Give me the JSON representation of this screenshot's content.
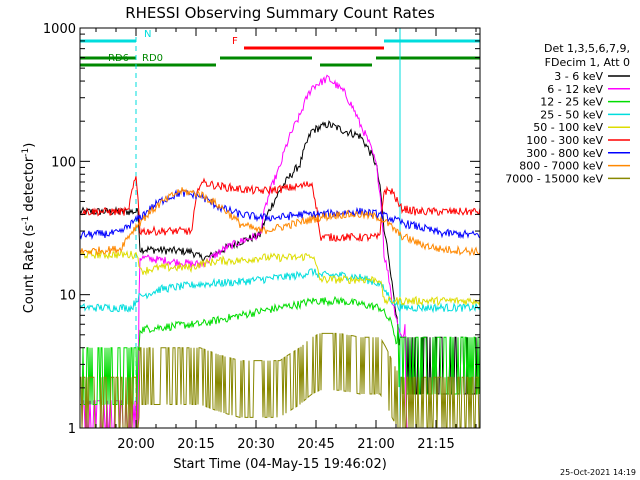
{
  "chart_data": {
    "type": "line",
    "title": "RHESSI Observing Summary Count Rates",
    "xlabel": "Start Time (04-May-15 19:46:02)",
    "ylabel_main": "Count Rate (s",
    "ylabel_sup1": "-1",
    "ylabel_mid": " detector",
    "ylabel_sup2": "-1",
    "ylabel_end": ")",
    "y_scale": "log",
    "ylim": [
      1,
      1000
    ],
    "xlim_minutes": [
      0,
      100
    ],
    "x_ticks": [
      {
        "label": "20:00",
        "minute": 14
      },
      {
        "label": "20:15",
        "minute": 29
      },
      {
        "label": "20:30",
        "minute": 44
      },
      {
        "label": "20:45",
        "minute": 59
      },
      {
        "label": "21:00",
        "minute": 74
      },
      {
        "label": "21:15",
        "minute": 89
      }
    ],
    "y_ticks": [
      {
        "label": "1",
        "value": 1
      },
      {
        "label": "10",
        "value": 10
      },
      {
        "label": "100",
        "value": 100
      },
      {
        "label": "1000",
        "value": 1000
      }
    ],
    "legend_header": [
      "Det 1,3,5,6,7,9,",
      "FDecim 1, Att 0"
    ],
    "legend_placement": "right",
    "series": [
      {
        "name": "3 - 6 keV",
        "color": "#000000",
        "x": [
          0,
          14.5,
          15,
          28,
          30,
          32,
          36,
          40,
          45,
          50,
          55,
          58,
          62,
          66,
          70,
          74,
          76,
          78,
          80,
          84,
          90,
          100
        ],
        "y": [
          42,
          42,
          22,
          21,
          19,
          19,
          22,
          25,
          28,
          60,
          95,
          170,
          190,
          170,
          155,
          95,
          30,
          12,
          3,
          3,
          3,
          3
        ]
      },
      {
        "name": "6 - 12 keV",
        "color": "#ff00ff",
        "x": [
          0,
          13,
          14.5,
          15,
          28,
          30,
          32,
          36,
          40,
          45,
          50,
          55,
          58,
          62,
          66,
          70,
          74,
          76,
          78,
          80,
          81,
          82,
          84,
          90,
          100
        ],
        "y": [
          1,
          1,
          1,
          19,
          17,
          17,
          18,
          22,
          25,
          28,
          90,
          220,
          360,
          420,
          330,
          190,
          95,
          20,
          9,
          5,
          5,
          0,
          0,
          0,
          0
        ]
      },
      {
        "name": "12 - 25 keV",
        "color": "#00dd00",
        "x": [
          0,
          14.5,
          15,
          28,
          30,
          35,
          40,
          45,
          50,
          55,
          58,
          60,
          65,
          70,
          75,
          78,
          80,
          84,
          90,
          100
        ],
        "y": [
          2.5,
          2.5,
          5.5,
          6,
          6,
          6.5,
          7,
          7.5,
          8,
          8.5,
          9,
          9,
          9,
          8.5,
          8,
          6,
          3,
          3,
          3,
          3
        ]
      },
      {
        "name": "25 - 50 keV",
        "color": "#00dddd",
        "x": [
          0,
          13,
          14.5,
          20,
          30,
          40,
          45,
          50,
          55,
          58,
          60,
          65,
          70,
          75,
          78,
          80,
          84,
          90,
          100
        ],
        "y": [
          8,
          8,
          9.5,
          11,
          12,
          12.5,
          13,
          13.5,
          14,
          15,
          14,
          14,
          13.5,
          12,
          9,
          8,
          8,
          8,
          8
        ]
      },
      {
        "name": "50 - 100 keV",
        "color": "#dddd00",
        "x": [
          0,
          14.5,
          15,
          20,
          28,
          30,
          35,
          40,
          45,
          50,
          55,
          58,
          60,
          65,
          70,
          75,
          76,
          78,
          80,
          84,
          90,
          100
        ],
        "y": [
          20,
          20,
          15,
          16,
          16,
          17,
          18,
          18,
          19,
          19,
          19,
          20,
          13,
          13,
          13,
          13,
          9,
          9,
          9,
          9,
          9,
          9
        ]
      },
      {
        "name": "100 - 300 keV",
        "color": "#ff0000",
        "x": [
          0,
          12,
          14,
          15,
          28,
          30,
          35,
          40,
          45,
          50,
          55,
          58,
          60,
          65,
          70,
          74,
          75,
          76,
          78,
          80,
          84,
          90,
          100
        ],
        "y": [
          42,
          42,
          75,
          30,
          30,
          70,
          65,
          62,
          60,
          62,
          65,
          68,
          27,
          27,
          27,
          27,
          27,
          60,
          60,
          45,
          42,
          42,
          42
        ]
      },
      {
        "name": "300 - 800 keV",
        "color": "#0000ff",
        "x": [
          0,
          10,
          15,
          20,
          25,
          30,
          35,
          40,
          45,
          50,
          55,
          60,
          65,
          70,
          75,
          80,
          85,
          90,
          100
        ],
        "y": [
          28,
          29,
          38,
          50,
          58,
          55,
          45,
          40,
          38,
          38,
          40,
          40,
          41,
          42,
          40,
          35,
          32,
          29,
          28
        ]
      },
      {
        "name": "800 - 7000 keV",
        "color": "#ff8800",
        "x": [
          0,
          10,
          15,
          20,
          25,
          30,
          35,
          40,
          45,
          50,
          55,
          60,
          65,
          70,
          75,
          80,
          85,
          90,
          100
        ],
        "y": [
          21,
          22,
          35,
          48,
          60,
          57,
          46,
          34,
          30,
          32,
          35,
          38,
          40,
          40,
          38,
          28,
          24,
          22,
          21
        ]
      },
      {
        "name": "7000 - 15000 keV",
        "color": "#888800",
        "x": [
          0,
          14.5,
          15,
          30,
          35,
          40,
          45,
          50,
          55,
          58,
          60,
          65,
          70,
          75,
          78,
          80,
          84,
          90,
          100
        ],
        "y": [
          1.5,
          1.5,
          2.5,
          2.5,
          2.2,
          2,
          2,
          2,
          2.5,
          3,
          3.2,
          3.2,
          3,
          3,
          2,
          1.5,
          1.5,
          1.5,
          1.5
        ]
      }
    ],
    "state_bars": [
      {
        "label": "N",
        "color": "#00dddd",
        "start": 0,
        "end": 14,
        "level": "top",
        "label_at": 16
      },
      {
        "label": "N",
        "color": "#00dddd",
        "start": 76,
        "end": 100,
        "level": "top",
        "label_at": null
      },
      {
        "label": "F",
        "color": "#ff0000",
        "start": 41,
        "end": 76,
        "level": "mid",
        "label_at": 38
      },
      {
        "label": "RD0",
        "color": "#008800",
        "start": 0,
        "end": 14,
        "level": "low",
        "label_at": null
      },
      {
        "label": "RD0",
        "color": "#008800",
        "start": 14,
        "end": 34,
        "level": "bottom",
        "label_at": 15.5
      },
      {
        "label": "RD0",
        "color": "#008800",
        "start": 35,
        "end": 58,
        "level": "low",
        "label_at": null
      },
      {
        "label": "RD6",
        "color": "#008800",
        "start": 0,
        "end": 14,
        "level": "bottom",
        "label_at": 7
      },
      {
        "label": "RD0",
        "color": "#008800",
        "start": 60,
        "end": 73,
        "level": "bottom",
        "label_at": null
      },
      {
        "label": "RD0",
        "color": "#008800",
        "start": 74,
        "end": 100,
        "level": "low",
        "label_at": null
      }
    ],
    "vertical_markers": [
      {
        "minute": 14,
        "style": "dashed",
        "color": "#00dddd"
      },
      {
        "minute": 80,
        "style": "solid",
        "color": "#00dddd"
      },
      {
        "minute": 100,
        "style": "dashed",
        "color": "#00dddd"
      },
      {
        "minute": 0,
        "style": "solid",
        "color": "#00dddd"
      }
    ],
    "footer_stamp": "25-Oct-2021 14:19"
  }
}
